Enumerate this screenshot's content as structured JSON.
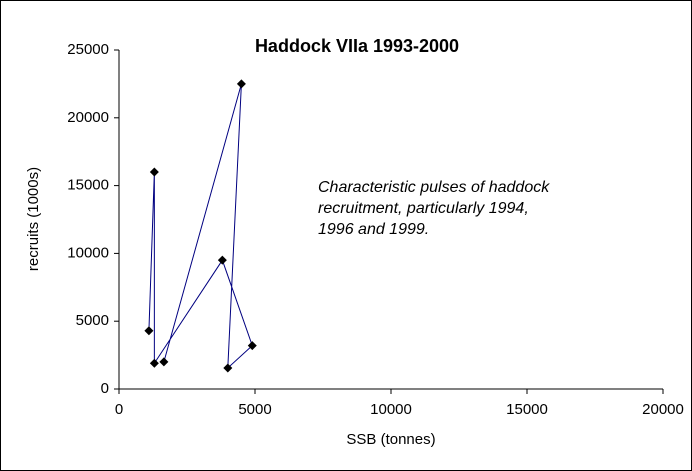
{
  "chart_data": {
    "type": "scatter-line",
    "title": "Haddock VIIa  1993-2000",
    "x_label": "SSB (tonnes)",
    "y_label": "recruits (1000s)",
    "annotation": [
      "Characteristic pulses of haddock",
      "recruitment, particularly 1994,",
      "1996 and 1999."
    ],
    "series": [
      {
        "line_color": "#000080",
        "marker_color": "#000000",
        "x": [
          1100,
          1300,
          1300,
          3800,
          4900,
          4000,
          4500,
          1650
        ],
        "values": [
          4300,
          16000,
          1900,
          9500,
          3200,
          1550,
          22500,
          2000
        ]
      }
    ],
    "xlim": [
      0,
      20000
    ],
    "xticks": [
      0,
      5000,
      10000,
      15000,
      20000
    ],
    "ylim": [
      0,
      25000
    ],
    "yticks": [
      0,
      5000,
      10000,
      15000,
      20000,
      25000
    ],
    "grid": false
  }
}
